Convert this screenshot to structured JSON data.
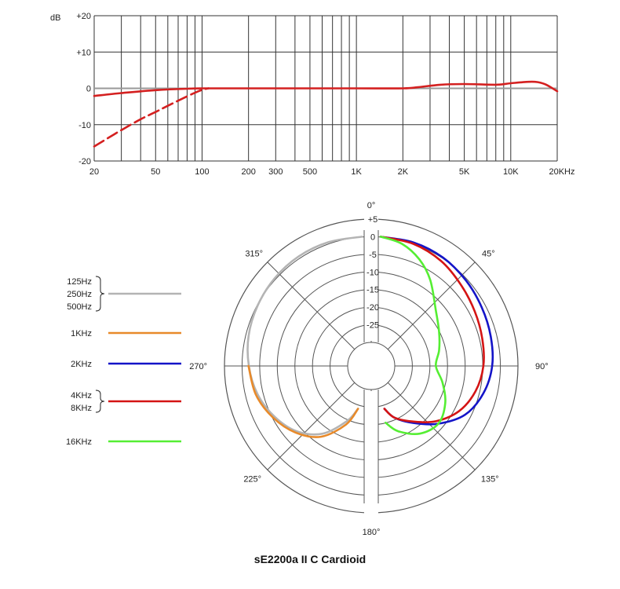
{
  "chart_data": [
    {
      "type": "line",
      "title": "",
      "xlabel": "",
      "ylabel": "dB",
      "x_scale": "log",
      "xlim": [
        20,
        20000
      ],
      "ylim": [
        -20,
        20
      ],
      "grid": true,
      "x_ticks": [
        {
          "value": 20,
          "label": "20"
        },
        {
          "value": 50,
          "label": "50"
        },
        {
          "value": 100,
          "label": "100"
        },
        {
          "value": 200,
          "label": "200"
        },
        {
          "value": 300,
          "label": "300"
        },
        {
          "value": 500,
          "label": "500"
        },
        {
          "value": 1000,
          "label": "1K"
        },
        {
          "value": 2000,
          "label": "2K"
        },
        {
          "value": 5000,
          "label": "5K"
        },
        {
          "value": 10000,
          "label": "10K"
        },
        {
          "value": 20000,
          "label": "20KHz"
        }
      ],
      "y_ticks": [
        {
          "value": 20,
          "label": "+20"
        },
        {
          "value": 10,
          "label": "+10"
        },
        {
          "value": 0,
          "label": "0"
        },
        {
          "value": -10,
          "label": "-10"
        },
        {
          "value": -20,
          "label": "-20"
        }
      ],
      "series": [
        {
          "color": "#d42020",
          "style": "solid",
          "x": [
            20,
            30,
            50,
            80,
            100,
            150,
            300,
            1000,
            2000,
            2500,
            3500,
            5000,
            8000,
            10000,
            13000,
            15000,
            17000,
            20000
          ],
          "y": [
            -2.1,
            -1.3,
            -0.5,
            -0.1,
            0,
            0,
            0,
            0,
            0,
            0.3,
            1.0,
            1.2,
            1.0,
            1.4,
            1.8,
            1.7,
            1.0,
            -0.8
          ]
        },
        {
          "color": "#d42020",
          "style": "dashed",
          "x": [
            20,
            25,
            30,
            40,
            50,
            60,
            70,
            80,
            90,
            100,
            110
          ],
          "y": [
            -16,
            -13.5,
            -11.5,
            -8.5,
            -6.5,
            -4.8,
            -3.4,
            -2.2,
            -1.2,
            -0.4,
            0
          ]
        }
      ]
    },
    {
      "type": "polar",
      "title": "sE2200a II C  Cardioid",
      "r_ticks": [
        {
          "value": 5,
          "label": "+5"
        },
        {
          "value": 0,
          "label": "0"
        },
        {
          "value": -5,
          "label": "-5"
        },
        {
          "value": -10,
          "label": "-10"
        },
        {
          "value": -15,
          "label": "-15"
        },
        {
          "value": -20,
          "label": "-20"
        },
        {
          "value": -25,
          "label": "-25"
        }
      ],
      "rlim": [
        -30,
        5
      ],
      "angle_labels": [
        {
          "angle": 0,
          "label": "0°"
        },
        {
          "angle": 45,
          "label": "45°"
        },
        {
          "angle": 90,
          "label": "90°"
        },
        {
          "angle": 135,
          "label": "135°"
        },
        {
          "angle": 180,
          "label": "180°"
        },
        {
          "angle": 225,
          "label": "225°"
        },
        {
          "angle": 270,
          "label": "270°"
        },
        {
          "angle": 315,
          "label": "315°"
        }
      ],
      "series": [
        {
          "legend": [
            "125Hz",
            "250Hz",
            "500Hz"
          ],
          "color": "#b4b4b4",
          "side": "left",
          "angles": [
            0,
            15,
            30,
            45,
            60,
            75,
            90,
            105,
            120,
            135,
            150,
            165,
            175
          ],
          "values": [
            0,
            -0.3,
            -0.8,
            -1.6,
            -2.5,
            -3.4,
            -4.6,
            -6.0,
            -8.0,
            -10.5,
            -14.5,
            -20.5,
            -24.5
          ]
        },
        {
          "legend": [
            "1KHz"
          ],
          "color": "#e88a2a",
          "side": "left",
          "angles": [
            90,
            105,
            120,
            135,
            150,
            165,
            175
          ],
          "values": [
            -4.5,
            -5.5,
            -7.5,
            -10.0,
            -13.5,
            -19.5,
            -24.5
          ]
        },
        {
          "legend": [
            "2KHz"
          ],
          "color": "#1414c8",
          "side": "right",
          "angles": [
            0,
            15,
            30,
            45,
            60,
            75,
            90,
            105,
            120,
            135,
            150,
            165,
            175
          ],
          "values": [
            0,
            -0.4,
            -1.2,
            -2.4,
            -3.5,
            -4.3,
            -5.0,
            -6.5,
            -9.0,
            -13.5,
            -18.0,
            -21.5,
            -24.5
          ]
        },
        {
          "legend": [
            "4KHz",
            "8KHz"
          ],
          "color": "#d41414",
          "side": "right",
          "angles": [
            0,
            15,
            30,
            45,
            60,
            75,
            90,
            105,
            120,
            135,
            150,
            165,
            175
          ],
          "values": [
            0,
            -0.8,
            -2.3,
            -4.3,
            -5.8,
            -6.8,
            -7.5,
            -8.8,
            -11.0,
            -14.5,
            -18.5,
            -21.5,
            -24.5
          ]
        },
        {
          "legend": [
            "16KHz"
          ],
          "color": "#55ee33",
          "side": "right",
          "angles": [
            0,
            10,
            20,
            30,
            45,
            60,
            75,
            90,
            105,
            120,
            135,
            150,
            165,
            175
          ],
          "values": [
            0,
            -1.5,
            -4.5,
            -8.5,
            -14.5,
            -17.5,
            -19.5,
            -21.0,
            -18.5,
            -15.5,
            -13.5,
            -14.5,
            -17.5,
            -20.5
          ]
        }
      ]
    }
  ]
}
